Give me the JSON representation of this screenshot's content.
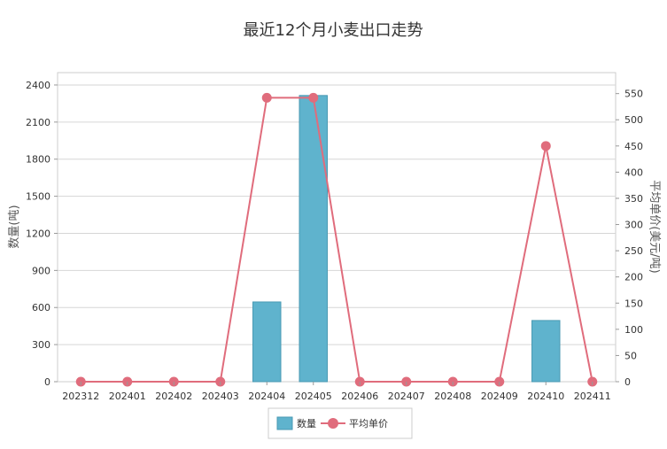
{
  "chart_data": {
    "type": "bar+line",
    "title": "最近12个月小麦出口走势",
    "categories": [
      "202312",
      "202401",
      "202402",
      "202403",
      "202404",
      "202405",
      "202406",
      "202407",
      "202408",
      "202409",
      "202410",
      "202411"
    ],
    "series": [
      {
        "name": "数量",
        "type": "bar",
        "axis": "left",
        "color": "#5fb3cd",
        "values": [
          0,
          0,
          0,
          0,
          645,
          2315,
          0,
          0,
          0,
          0,
          495,
          0
        ]
      },
      {
        "name": "平均单价",
        "type": "line",
        "axis": "right",
        "color": "#e06c7c",
        "values": [
          0,
          0,
          0,
          0,
          542,
          542,
          0,
          0,
          0,
          0,
          450,
          0
        ]
      }
    ],
    "y_left": {
      "label": "数量(吨)",
      "min": 0,
      "max": 2500,
      "ticks": [
        0,
        300,
        600,
        900,
        1200,
        1500,
        1800,
        2100,
        2400
      ]
    },
    "y_right": {
      "label": "平均单价(美元/吨)",
      "min": 0,
      "max": 590,
      "ticks": [
        0,
        50,
        100,
        150,
        200,
        250,
        300,
        350,
        400,
        450,
        500,
        550
      ]
    },
    "grid": true,
    "legend": "bottom"
  }
}
